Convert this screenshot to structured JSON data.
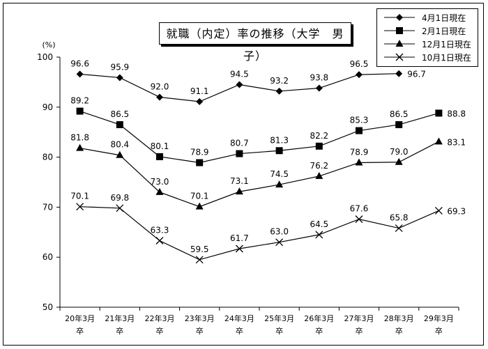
{
  "chart_data": {
    "type": "line",
    "title": "就職（内定）率の推移（大学　男子）",
    "ylabel": "(%)",
    "ylim": [
      50,
      100
    ],
    "yticks": [
      50,
      60,
      70,
      80,
      90,
      100
    ],
    "categories": [
      [
        "20年3月",
        "卒"
      ],
      [
        "21年3月",
        "卒"
      ],
      [
        "22年3月",
        "卒"
      ],
      [
        "23年3月",
        "卒"
      ],
      [
        "24年3月",
        "卒"
      ],
      [
        "25年3月",
        "卒"
      ],
      [
        "26年3月",
        "卒"
      ],
      [
        "27年3月",
        "卒"
      ],
      [
        "28年3月",
        "卒"
      ],
      [
        "29年3月",
        "卒"
      ]
    ],
    "grid": false,
    "legend_position": "top-right",
    "series": [
      {
        "name": "4月1日現在",
        "marker": "diamond",
        "values": [
          96.6,
          95.9,
          92.0,
          91.1,
          94.5,
          93.2,
          93.8,
          96.5,
          96.7,
          null
        ],
        "labels": [
          "96.6",
          "95.9",
          "92.0",
          "91.1",
          "94.5",
          "93.2",
          "93.8",
          "96.5",
          "96.7",
          null
        ]
      },
      {
        "name": "2月1日現在",
        "marker": "square",
        "values": [
          89.2,
          86.5,
          80.1,
          78.9,
          80.7,
          81.3,
          82.2,
          85.3,
          86.5,
          88.8
        ],
        "labels": [
          "89.2",
          "86.5",
          "80.1",
          "78.9",
          "80.7",
          "81.3",
          "82.2",
          "85.3",
          "86.5",
          "88.8"
        ]
      },
      {
        "name": "12月1日現在",
        "marker": "triangle",
        "values": [
          81.8,
          80.4,
          73.0,
          70.1,
          73.1,
          74.5,
          76.2,
          78.9,
          79.0,
          83.1
        ],
        "labels": [
          "81.8",
          "80.4",
          "73.0",
          "70.1",
          "73.1",
          "74.5",
          "76.2",
          "78.9",
          "79.0",
          "83.1"
        ]
      },
      {
        "name": "10月1日現在",
        "marker": "cross",
        "values": [
          70.1,
          69.8,
          63.3,
          59.5,
          61.7,
          63.0,
          64.5,
          67.6,
          65.8,
          69.3
        ],
        "labels": [
          "70.1",
          "69.8",
          "63.3",
          "59.5",
          "61.7",
          "63.0",
          "64.5",
          "67.6",
          "65.8",
          "69.3"
        ]
      }
    ]
  }
}
